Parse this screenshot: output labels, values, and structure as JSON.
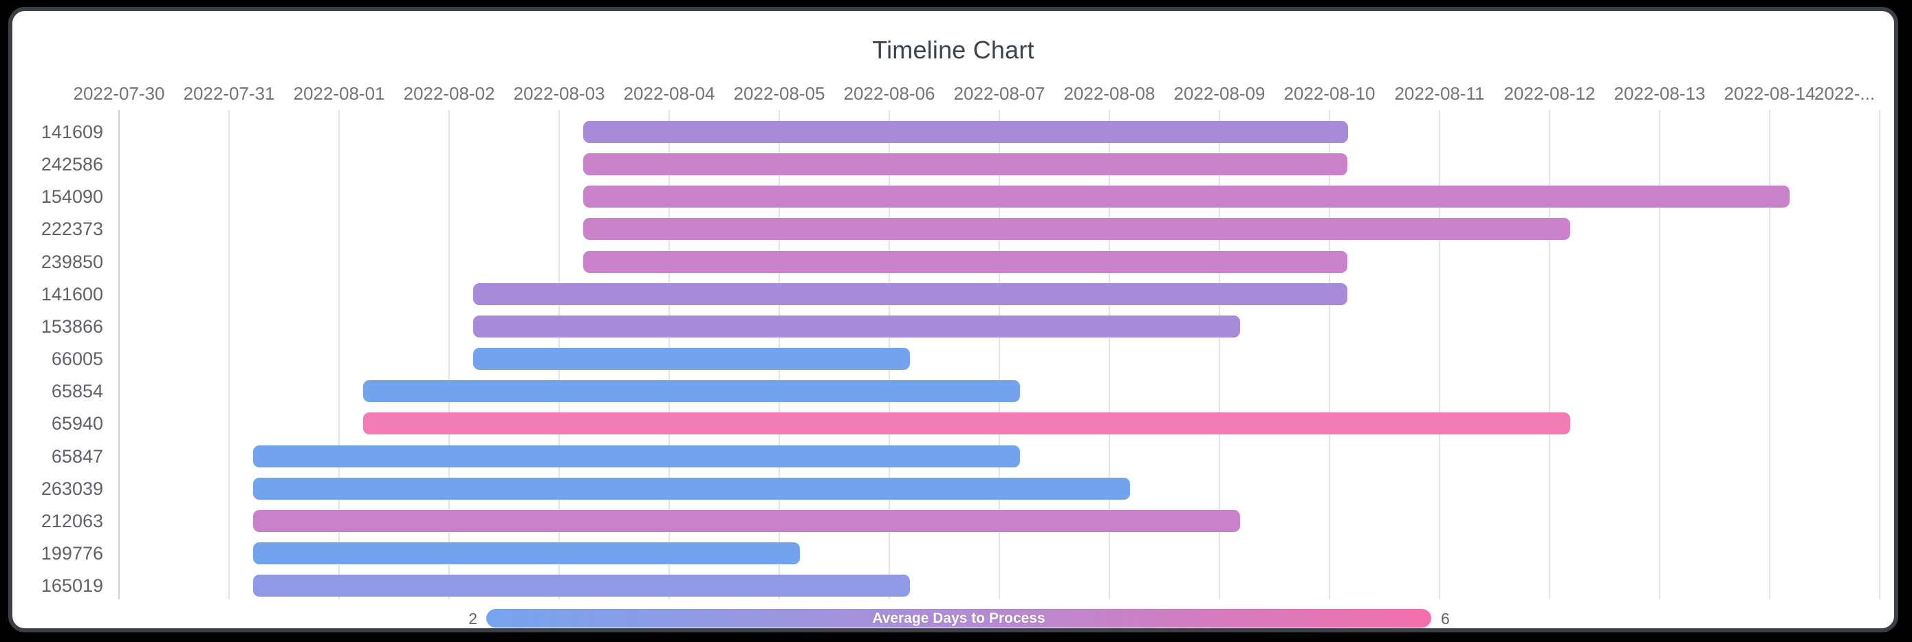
{
  "page": {
    "title": "Timeline Chart"
  },
  "legend": {
    "min": "2",
    "max": "6",
    "title": "Average Days to Process",
    "gradient_colors": [
      "#76a4ee",
      "#b18cd5",
      "#f36fab"
    ]
  },
  "chart_data": {
    "type": "bar",
    "variant": "horizontal-timeline-gantt",
    "title": "Timeline Chart",
    "x_axis_labels": [
      "2022-07-30",
      "2022-07-31",
      "2022-08-01",
      "2022-08-02",
      "2022-08-03",
      "2022-08-04",
      "2022-08-05",
      "2022-08-06",
      "2022-08-07",
      "2022-08-08",
      "2022-08-09",
      "2022-08-10",
      "2022-08-11",
      "2022-08-12",
      "2022-08-13",
      "2022-08-14",
      "2022-..."
    ],
    "axis_start_date": "2022-07-30",
    "grid": true,
    "legend_position": "bottom-center",
    "color_scale": {
      "label": "Average Days to Process",
      "min": 2,
      "max": 6,
      "min_color": "#74a3ee",
      "max_color": "#f17cb4"
    },
    "rows": [
      {
        "id": "141609",
        "start_date": "2022-08-03",
        "end_date": "2022-08-10",
        "start_offset_days": 4.22,
        "end_offset_days": 11.17,
        "color": "#a78bd8"
      },
      {
        "id": "242586",
        "start_date": "2022-08-03",
        "end_date": "2022-08-10",
        "start_offset_days": 4.22,
        "end_offset_days": 11.16,
        "color": "#c981ca"
      },
      {
        "id": "154090",
        "start_date": "2022-08-03",
        "end_date": "2022-08-14",
        "start_offset_days": 4.22,
        "end_offset_days": 15.18,
        "color": "#c981ca"
      },
      {
        "id": "222373",
        "start_date": "2022-08-03",
        "end_date": "2022-08-12",
        "start_offset_days": 4.22,
        "end_offset_days": 13.19,
        "color": "#c981ca"
      },
      {
        "id": "239850",
        "start_date": "2022-08-03",
        "end_date": "2022-08-10",
        "start_offset_days": 4.22,
        "end_offset_days": 11.16,
        "color": "#c981ca"
      },
      {
        "id": "141600",
        "start_date": "2022-08-02",
        "end_date": "2022-08-10",
        "start_offset_days": 3.22,
        "end_offset_days": 11.16,
        "color": "#a78bd8"
      },
      {
        "id": "153866",
        "start_date": "2022-08-02",
        "end_date": "2022-08-09",
        "start_offset_days": 3.22,
        "end_offset_days": 10.19,
        "color": "#a78bd8"
      },
      {
        "id": "66005",
        "start_date": "2022-08-02",
        "end_date": "2022-08-06",
        "start_offset_days": 3.22,
        "end_offset_days": 7.19,
        "color": "#74a3ee"
      },
      {
        "id": "65854",
        "start_date": "2022-08-01",
        "end_date": "2022-08-07",
        "start_offset_days": 2.22,
        "end_offset_days": 8.19,
        "color": "#74a3ee"
      },
      {
        "id": "65940",
        "start_date": "2022-08-01",
        "end_date": "2022-08-12",
        "start_offset_days": 2.22,
        "end_offset_days": 13.19,
        "color": "#f17cb4"
      },
      {
        "id": "65847",
        "start_date": "2022-07-31",
        "end_date": "2022-08-07",
        "start_offset_days": 1.22,
        "end_offset_days": 8.19,
        "color": "#74a3ee"
      },
      {
        "id": "263039",
        "start_date": "2022-07-31",
        "end_date": "2022-08-08",
        "start_offset_days": 1.22,
        "end_offset_days": 9.19,
        "color": "#74a3ee"
      },
      {
        "id": "212063",
        "start_date": "2022-07-31",
        "end_date": "2022-08-09",
        "start_offset_days": 1.22,
        "end_offset_days": 10.19,
        "color": "#c981ca"
      },
      {
        "id": "199776",
        "start_date": "2022-07-31",
        "end_date": "2022-08-05",
        "start_offset_days": 1.22,
        "end_offset_days": 6.19,
        "color": "#74a3ee"
      },
      {
        "id": "165019",
        "start_date": "2022-07-31",
        "end_date": "2022-08-06",
        "start_offset_days": 1.22,
        "end_offset_days": 7.19,
        "color": "#8f99e6"
      }
    ]
  }
}
